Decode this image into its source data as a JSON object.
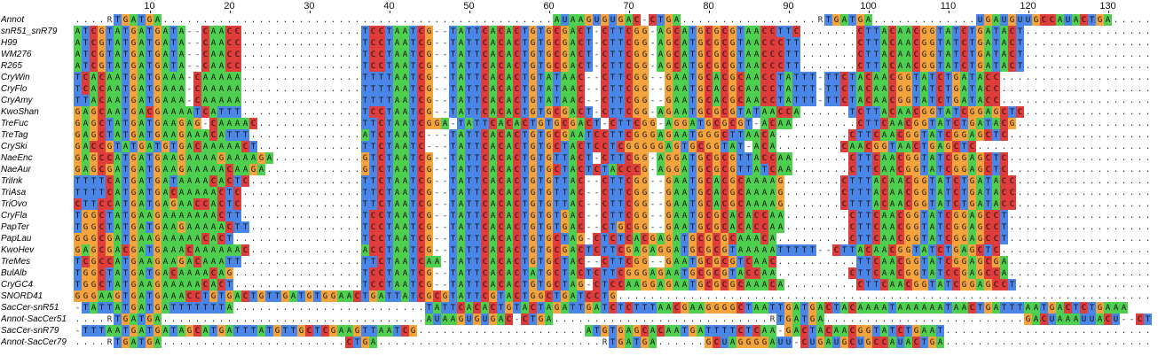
{
  "ruler": {
    "ticks": [
      10,
      20,
      30,
      40,
      50,
      60,
      70,
      80,
      90,
      100,
      110,
      120,
      130
    ]
  },
  "colors": {
    "A": "#4fcf4f",
    "T": "#4a86e8",
    "U": "#4a86e8",
    "G": "#f5a33c",
    "C": "#df3c3c"
  },
  "rows": [
    {
      "name": "Annot",
      "seq": "....RTGATGA.................................................AUAAGUGUGAC-CTGA.................RTGATGA.............UGAUGUUGCCAUACTGA......................."
    },
    {
      "name": "snR51_snR79",
      "seq": "ATCGTATGATGATA--CAACC...............TCCTAATCG--TATTCACACTGTGCGACT-CTTCGG-AGCATGCGCGTAACCTTC.......CTTACAACGGTATCTGATACT........................"
    },
    {
      "name": "H99",
      "seq": "ATCGTATGATGATA--CAACC...............TCCTAATCG--TATTCACACTGTGCGACT-CTTCGG-AGCATGCGCGTAACCCTT.......CTTACAACGGTATCTGATACT........................"
    },
    {
      "name": "WM276",
      "seq": "ATCGTATGATGATA--CAACC...............TCCTAATCG--TATTCACACTGTGCGACT-CTTCGG-AGCATGCGCGTAACCCTT.......CTTACAACGGTATCTGATACT........................"
    },
    {
      "name": "R265",
      "seq": "ATCGTATGATGATA--CAACC...............TCCTAATCG--TATTCACACTGTGCGACT-CTTCGG-AGCATGCGCGTAACCCTT.......CTTACAACGGTATCTGATACT........................"
    },
    {
      "name": "CryWin",
      "seq": "TCACAATGATGAAA-CAAAAA...............TTTTAATCG--TATTCACACTGTATAAC--CTTCGG--GAATGCACGCAACCTATTT-TTCTACAACGGTATCTGATACC........................"
    },
    {
      "name": "CryFlo",
      "seq": "TCACAATGATGAAA-CAAAAA...............TTTTAATCG--TATTCACACTGTATAAC--CTTCGG--GAATGCACGCAACCTATTT-TTCTACAACGGTATCTGATACC........................"
    },
    {
      "name": "CryAmy",
      "seq": "TTACAATGATGAAA-CAAAAA...............TTTTAATCG--TATTCACACTGTATAAC--CTTCGG--GAATGCACGCAACCTATTT-TTCTACAACGGTATCTGATACC........................"
    },
    {
      "name": "KwoShan",
      "seq": "GAGCAATGACGAAAATCATTT...............TCCTAATCG--TATTCACACTGTGCGACT-CTTCGG-AGAATGCGCGTATAACCA......TCTTACAACGGTATCGGAGCTC........................"
    },
    {
      "name": "TreFuc",
      "seq": "GAGCTATGATGAAGAG-CAAAAC.............TTCTAATCGGA-TATTCACACTGTGCGACT-CTTCGG-AGGATGCGCGT-ACAA........CTTCAACGGTATCTGATACG........................"
    },
    {
      "name": "TreTag",
      "seq": "GAGCTATGATGAAGAAACATTT..............ATCTAATC---TATTCACACTGTGCGAATCCTTCGGGAGAATGGGCTTAACA.........CTTCAACGGTATCGGAGCTC........................"
    },
    {
      "name": "CrySki",
      "seq": "GACCGTATGATGTGACAAAAACT.............TTCTAATC---TATTCACACTGTGCTACTCCTCGGGGGAGTGCGGTAT-ACA........CAACGGTAACTGAGCTC..........................."
    },
    {
      "name": "NaeEnc",
      "seq": "GAGCCATGATGAAGAAAAGAAAAGA...........GTCTAATCG--TATTCACACTGTGTTACT-CTTCGG-AGGATGCGCGTTACCAA.......CTTCAACGGTATCGGAGCTC........................."
    },
    {
      "name": "NaeAur",
      "seq": "GAGCGATGATGAAGAAAAACAAGA............GTCTAATCG--TATTCACACTGTGCTACTCTACCCG-AGGATGCGCGTTATCAA.......CTTCAACGGTATCGGAGCTC........................."
    },
    {
      "name": "TriInk",
      "seq": "TTTTCATGATGATAAAACACTC..............TTCTAATCG--TATTCACACTGTGTTAC--CTTCGG--GAATGCACGCAAAAG.......CTTTACAACGGTATCTGATACC........................."
    },
    {
      "name": "TriAsa",
      "seq": "TTTTCATGATGACAAAAACTC...............TTCTAATCG--TATTCACACTGTGTTAC--CTTCGG--GAATGCACGCAAAAG.......CTTTACAACGGTATCTGATACC........................."
    },
    {
      "name": "TriOvo",
      "seq": "CTTCCATGATGAGAACCACTC...............TTCTAATCG--TATTCACACTGTGTTAC--CTTCGG--GAATGCACGCAAAAG.......CTTTACAACGGTATCTGATACC........................."
    },
    {
      "name": "CryFla",
      "seq": "TGGCTATGAAGAAAAAAACTT...............TCCTAATCG--TATTCACACTGTGTGAC--CTTCGG--GAATGCGCACACCAA........CTTCAACGGTATCGGAGCCT........................."
    },
    {
      "name": "PapTer",
      "seq": "TGGCTATGATGAAGAAAAACTT..............TCCTAATCG--TATTCACACTGTGTGAC--CTGCGG--GAATGCGCACACCAA........CTTCAACGGTATCGGAGCCT........................."
    },
    {
      "name": "PapLau",
      "seq": "GGGCGATGAAGAAAAACACT................TCCTAATCG--TATTCACACTGTGCTAG-CTCTCACGAGATGCGCGCAAACA.........CTTCAACGGTATCGGAGCCT........................."
    },
    {
      "name": "KwoHev",
      "seq": "GAGCGACGATGAAACAAAAAAC..............ACCTAATCG--TATTCACACTGTGCGACTCTTCGAGAGGATGCGCGTAAAAATTTTT--CTTACAACGGTATCTGAGCTC........................"
    },
    {
      "name": "TreMes",
      "seq": "TCGCCATGAAGAAGACAAATT...............TTCTAATCAA-TATTCACACTGTGCTAC--CTTCGG--GAATGCGCGTCAAC..........TTCAACGGTATCGGAGCGA........................"
    },
    {
      "name": "BulAlb",
      "seq": "TGGCTATGATGACAAAACAG................TCCTAATCG--TATTCACACTATGCTACTCTTCGGGAGAATGCGCGTACCAA.........CTTCAACGGTATCCGAGCCA........................"
    },
    {
      "name": "CryGC4",
      "seq": "TGGCTATGAAGAAAAACACT................TCCTAATCG--TATTCACACTGTGCTAG-CTCCAAGGAGAATGCGCGCAAACA.........CTTCAACGGTATCGGAGCCT........................"
    },
    {
      "name": "SNORD41",
      "seq": "GGGAAGTGATGAAACCTGTGACTGTTGATGTGGAACTGATTATCGCGTATTCGTACTGGCTGATCCTG......................................................................."
    },
    {
      "name": "SacCer-snR51",
      "seq": "-TATTATGATGATTTTTTTA........................TATTCACACTGTACTAGATTGATCTCTTTAACGAAGGGGCTAATTGATGACTACAAAATAAAAAATAACTGATTTAATGACTCTGAAA"
    },
    {
      "name": "Annot-SacCer51",
      "seq": "....RTGATGA.................................AUAAGUGUGAC-CTGA...........................RTGATGA.........................GACUAAAUUACU--CTGA......."
    },
    {
      "name": "SacCer-snR79",
      "seq": "-TTTAATGATGATAGCATGATTTATGTTGCTCGAAGTTAATCG.....................ATGTGAGCACAATGATTTTCTCAA-GACTACAACGGTATCTGAAT.................................."
    },
    {
      "name": "Annot-SacCer79",
      "seq": "....RTGATGA.......................CTGA............................RTGATGA......GCUAGGGGAUU-CUGAUGCUGCCAUACTGA................................"
    }
  ]
}
